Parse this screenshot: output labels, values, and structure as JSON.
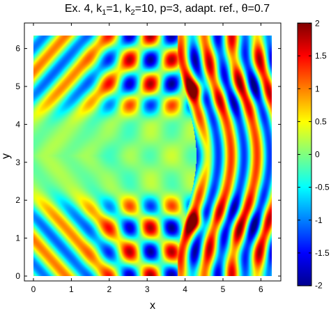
{
  "chart_data": {
    "type": "heatmap",
    "title": {
      "prefix": "Ex. 4, k",
      "sub1": "1",
      "mid1": "=1, k",
      "sub2": "2",
      "mid2": "=10, p=3, adapt. ref., ",
      "theta": "θ",
      "suffix": "=0.7"
    },
    "xlabel": "x",
    "ylabel": "y",
    "xlim": [
      0,
      6.2832
    ],
    "ylim": [
      0,
      6.2832
    ],
    "xticks": [
      0,
      1,
      2,
      3,
      4,
      5,
      6
    ],
    "yticks": [
      0,
      1,
      2,
      3,
      4,
      5,
      6
    ],
    "colorbar": {
      "colormap": "jet",
      "range": [
        -2,
        2
      ],
      "ticks": [
        "-2",
        "-1.5",
        "-1",
        "-0.5",
        "0",
        "0.5",
        "1",
        "1.5",
        "2"
      ],
      "tick_values": [
        -2,
        -1.5,
        -1,
        -0.5,
        0,
        0.5,
        1,
        1.5,
        2
      ]
    }
  }
}
